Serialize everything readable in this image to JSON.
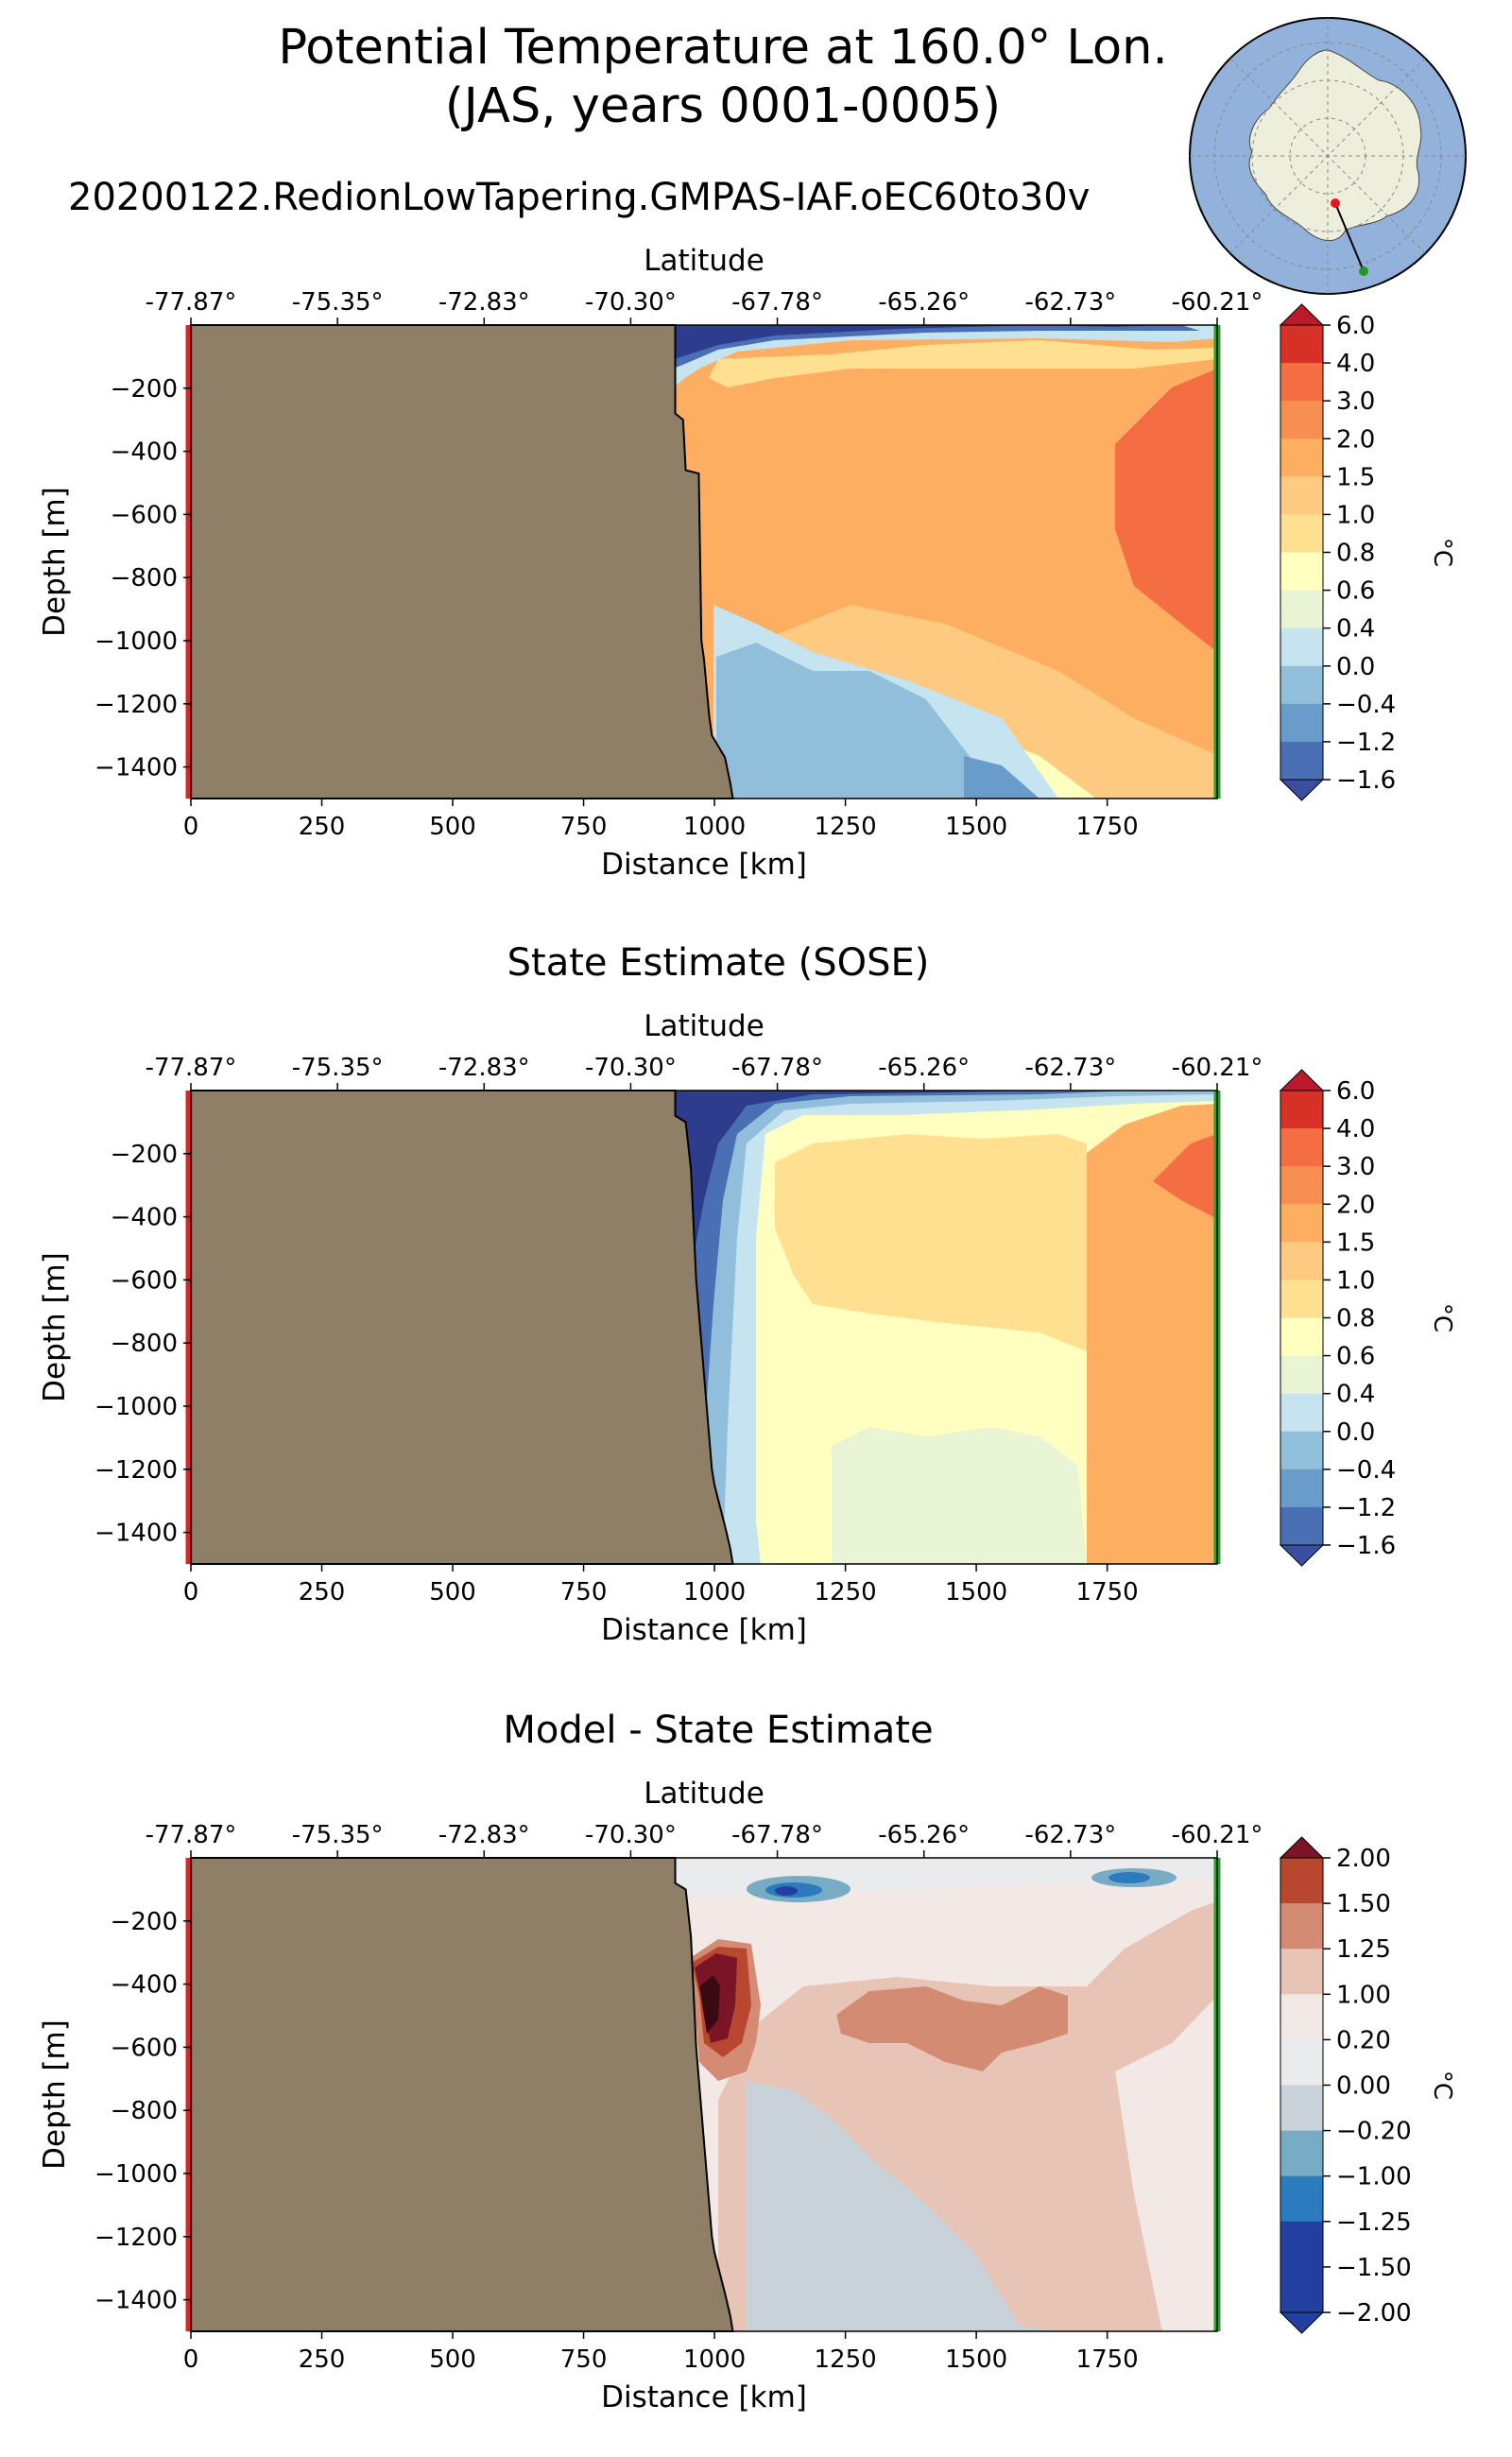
{
  "figure": {
    "title_line1": "Potential Temperature at 160.0° Lon.",
    "title_line2": "(JAS, years 0001-0005)",
    "subtitle": "20200122.RedionLowTapering.GMPAS-IAF.oEC60to30v"
  },
  "colors": {
    "land": "#8f7f66",
    "start_marker": "#d62728",
    "end_marker": "#2ca02c",
    "ocean_map": "#93b2db",
    "antarctica": "#eeeedd"
  },
  "chart_data": [
    {
      "type": "heatmap",
      "panel": "model",
      "title": "",
      "xlabel": "Distance [km]",
      "ylabel": "Depth [m]",
      "top_xlabel": "Latitude",
      "xlim": [
        0,
        1960
      ],
      "ylim": [
        -1500,
        0
      ],
      "x_ticks": [
        "0",
        "250",
        "500",
        "750",
        "1000",
        "1250",
        "1500",
        "1750"
      ],
      "x_tick_values": [
        0,
        250,
        500,
        750,
        1000,
        1250,
        1500,
        1750
      ],
      "y_ticks": [
        "−200",
        "−400",
        "−600",
        "−800",
        "−1000",
        "−1200",
        "−1400"
      ],
      "y_tick_values": [
        -200,
        -400,
        -600,
        -800,
        -1000,
        -1200,
        -1400
      ],
      "lat_ticks": [
        "-77.87°",
        "-75.35°",
        "-72.83°",
        "-70.30°",
        "-67.78°",
        "-65.26°",
        "-62.73°",
        "-60.21°"
      ],
      "colorbar_label": "°C",
      "colorbar_levels": [
        "6.0",
        "4.0",
        "3.0",
        "2.0",
        "1.5",
        "1.0",
        "0.8",
        "0.6",
        "0.4",
        "0.0",
        "−0.4",
        "−1.2",
        "−1.6"
      ],
      "colorbar_colors": [
        "#bb1a2b",
        "#d73027",
        "#f46d43",
        "#f88f52",
        "#fdae61",
        "#fec980",
        "#fee090",
        "#ffffbf",
        "#e9f4d5",
        "#c6e4f0",
        "#91bfdb",
        "#6a9ccb",
        "#4a6fb4",
        "#3b4fa0"
      ],
      "topography_distance": [
        925,
        925,
        940,
        945,
        970,
        975,
        980,
        990,
        995,
        1020,
        1030,
        1035
      ],
      "topography_depth": [
        0,
        -280,
        -300,
        -460,
        -470,
        -1000,
        -1060,
        -1240,
        -1300,
        -1370,
        -1450,
        -1500
      ]
    },
    {
      "type": "heatmap",
      "panel": "sose",
      "title": "State Estimate (SOSE)",
      "xlabel": "Distance [km]",
      "ylabel": "Depth [m]",
      "top_xlabel": "Latitude",
      "xlim": [
        0,
        1960
      ],
      "ylim": [
        -1500,
        0
      ],
      "x_ticks": [
        "0",
        "250",
        "500",
        "750",
        "1000",
        "1250",
        "1500",
        "1750"
      ],
      "x_tick_values": [
        0,
        250,
        500,
        750,
        1000,
        1250,
        1500,
        1750
      ],
      "y_ticks": [
        "−200",
        "−400",
        "−600",
        "−800",
        "−1000",
        "−1200",
        "−1400"
      ],
      "y_tick_values": [
        -200,
        -400,
        -600,
        -800,
        -1000,
        -1200,
        -1400
      ],
      "lat_ticks": [
        "-77.87°",
        "-75.35°",
        "-72.83°",
        "-70.30°",
        "-67.78°",
        "-65.26°",
        "-62.73°",
        "-60.21°"
      ],
      "colorbar_label": "°C",
      "colorbar_levels": [
        "6.0",
        "4.0",
        "3.0",
        "2.0",
        "1.5",
        "1.0",
        "0.8",
        "0.6",
        "0.4",
        "0.0",
        "−0.4",
        "−1.2",
        "−1.6"
      ],
      "colorbar_colors": [
        "#bb1a2b",
        "#d73027",
        "#f46d43",
        "#f88f52",
        "#fdae61",
        "#fec980",
        "#fee090",
        "#ffffbf",
        "#e9f4d5",
        "#c6e4f0",
        "#91bfdb",
        "#6a9ccb",
        "#4a6fb4",
        "#3b4fa0"
      ],
      "topography_distance": [
        925,
        925,
        945,
        955,
        965,
        975,
        985,
        995,
        1000,
        1020,
        1030,
        1035
      ],
      "topography_depth": [
        0,
        -80,
        -100,
        -250,
        -600,
        -800,
        -1000,
        -1200,
        -1250,
        -1380,
        -1450,
        -1500
      ]
    },
    {
      "type": "heatmap",
      "panel": "bias",
      "title": "Model - State Estimate",
      "xlabel": "Distance [km]",
      "ylabel": "Depth [m]",
      "top_xlabel": "Latitude",
      "xlim": [
        0,
        1960
      ],
      "ylim": [
        -1500,
        0
      ],
      "x_ticks": [
        "0",
        "250",
        "500",
        "750",
        "1000",
        "1250",
        "1500",
        "1750"
      ],
      "x_tick_values": [
        0,
        250,
        500,
        750,
        1000,
        1250,
        1500,
        1750
      ],
      "y_ticks": [
        "−200",
        "−400",
        "−600",
        "−800",
        "−1000",
        "−1200",
        "−1400"
      ],
      "y_tick_values": [
        -200,
        -400,
        -600,
        -800,
        -1000,
        -1200,
        -1400
      ],
      "lat_ticks": [
        "-77.87°",
        "-75.35°",
        "-72.83°",
        "-70.30°",
        "-67.78°",
        "-65.26°",
        "-62.73°",
        "-60.21°"
      ],
      "colorbar_label": "°C",
      "colorbar_levels": [
        "2.00",
        "1.50",
        "1.25",
        "1.00",
        "0.20",
        "0.00",
        "−0.20",
        "−1.00",
        "−1.25",
        "−1.50",
        "−2.00"
      ],
      "colorbar_colors": [
        "#7a1528",
        "#b9462e",
        "#d38c73",
        "#e8c4b6",
        "#f2e8e6",
        "#e9ebed",
        "#c9d2d9",
        "#78abc4",
        "#2c7bbf",
        "#2340a0"
      ],
      "topography_distance": [
        925,
        925,
        945,
        955,
        965,
        975,
        985,
        995,
        1000,
        1020,
        1030,
        1035
      ],
      "topography_depth": [
        0,
        -80,
        -100,
        -250,
        -600,
        -800,
        -1000,
        -1200,
        -1250,
        -1380,
        -1450,
        -1500
      ]
    }
  ]
}
